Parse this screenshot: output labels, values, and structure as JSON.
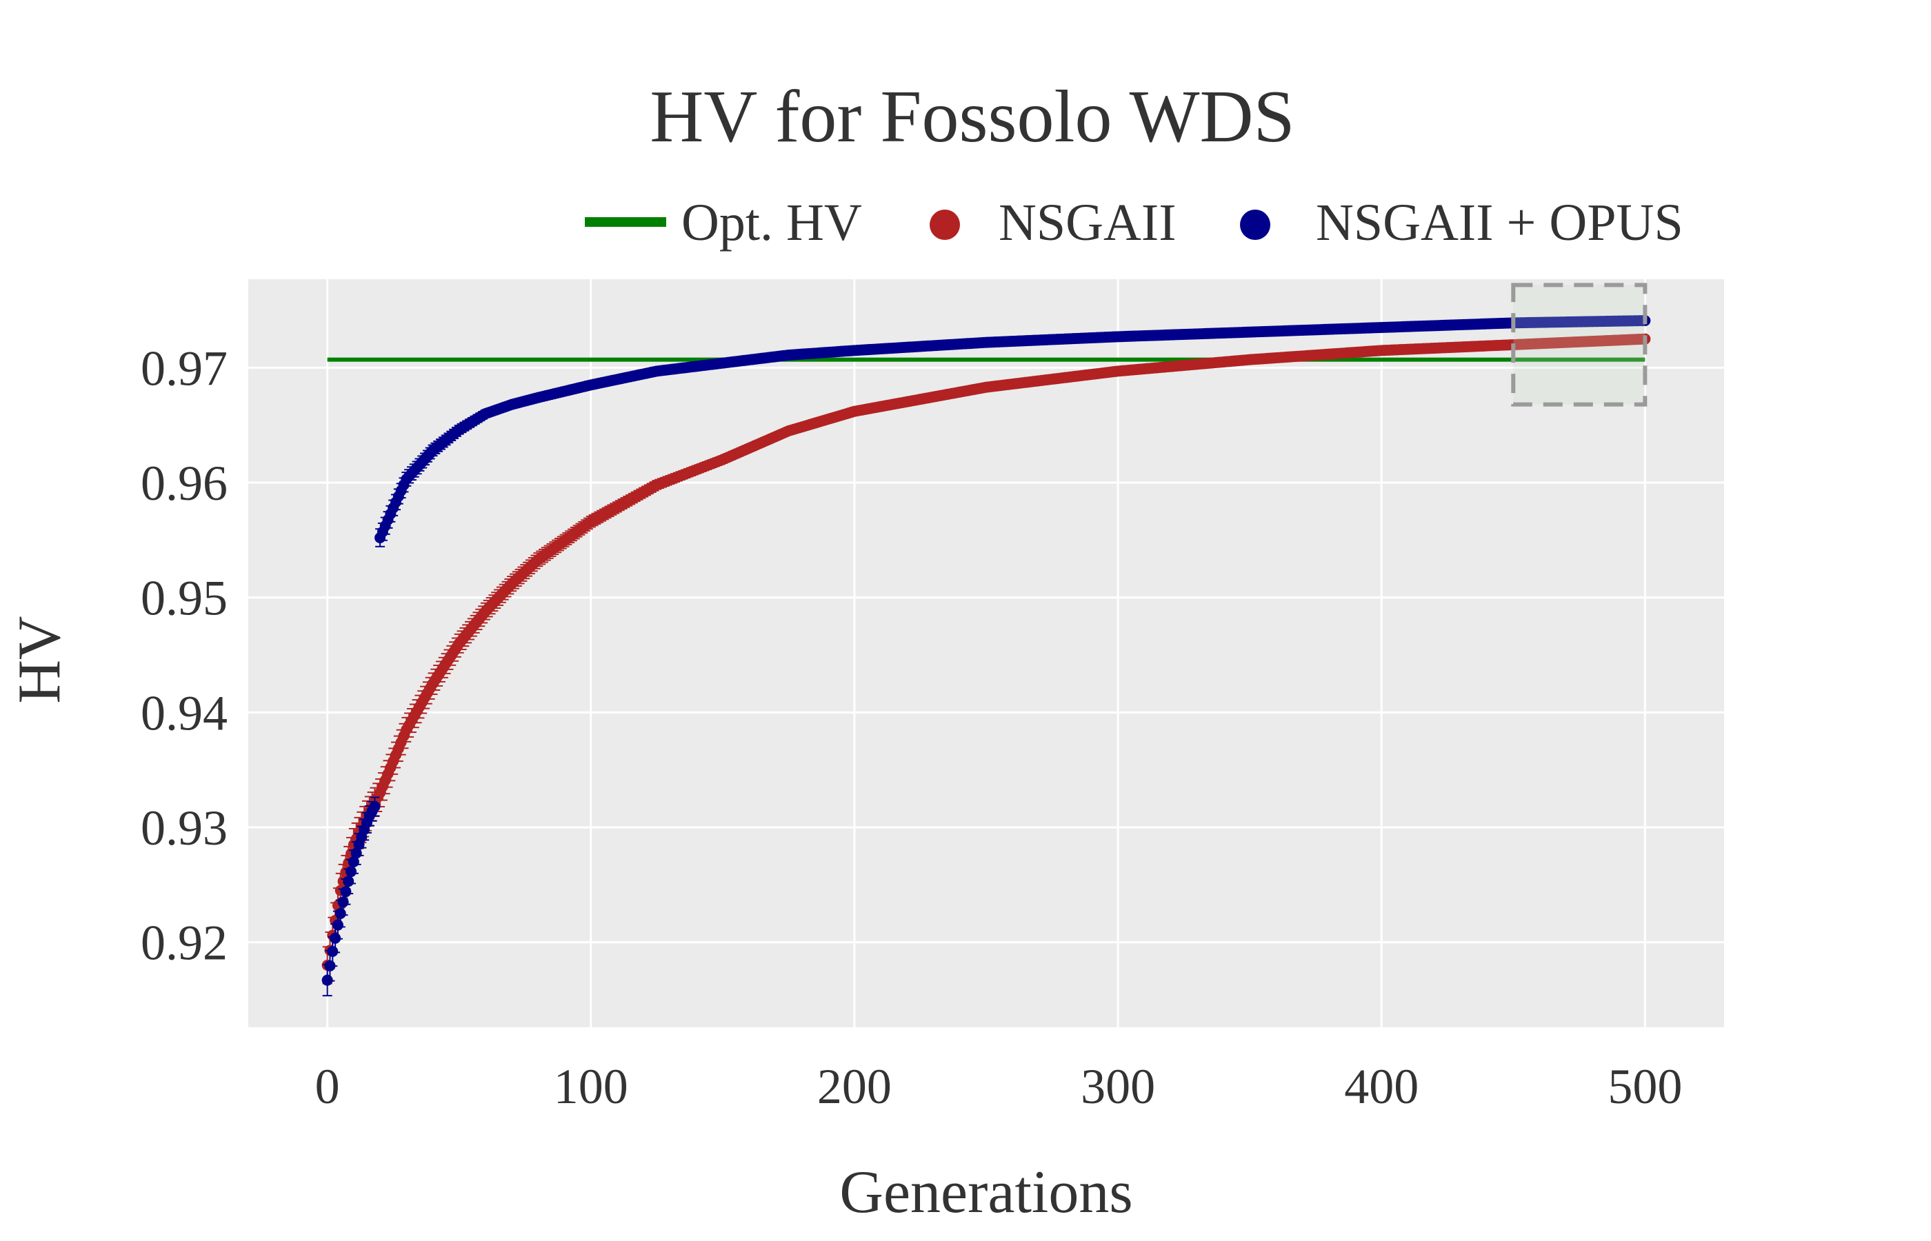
{
  "chart_data": {
    "type": "line",
    "title": "HV for Fossolo WDS",
    "xlabel": "Generations",
    "ylabel": "HV",
    "xlim": [
      -30,
      530
    ],
    "ylim": [
      0.9126,
      0.9777
    ],
    "xticks": [
      0,
      100,
      200,
      300,
      400,
      500
    ],
    "xtick_labels": [
      "0",
      "100",
      "200",
      "300",
      "400",
      "500"
    ],
    "yticks": [
      0.92,
      0.93,
      0.94,
      0.95,
      0.96,
      0.97
    ],
    "ytick_labels": [
      "0.92",
      "0.93",
      "0.94",
      "0.95",
      "0.96",
      "0.97"
    ],
    "grid": true,
    "legend_position": "top-right",
    "background_color": "#ebebeb",
    "series": [
      {
        "name": "Opt. HV",
        "kind": "line",
        "color": "#008000",
        "x": [
          0,
          500
        ],
        "y": [
          0.9707,
          0.9707
        ]
      },
      {
        "name": "NSGAII",
        "kind": "scatter-errorbar",
        "color": "#b22222",
        "x": [
          0,
          5,
          10,
          15,
          20,
          30,
          40,
          50,
          60,
          70,
          80,
          100,
          125,
          150,
          175,
          200,
          250,
          300,
          350,
          400,
          450,
          500
        ],
        "y": [
          0.918,
          0.9245,
          0.9285,
          0.931,
          0.933,
          0.9385,
          0.9425,
          0.946,
          0.9488,
          0.9512,
          0.9533,
          0.9566,
          0.9598,
          0.962,
          0.9645,
          0.9662,
          0.9683,
          0.9697,
          0.9707,
          0.9715,
          0.972,
          0.9725
        ]
      },
      {
        "name": "NSGAII + OPUS",
        "kind": "scatter-errorbar",
        "color": "#00008b",
        "x": [
          0,
          2,
          4,
          6,
          8,
          10,
          12,
          14,
          16,
          18,
          20,
          25,
          30,
          40,
          50,
          60,
          70,
          80,
          100,
          125,
          150,
          175,
          200,
          250,
          300,
          350,
          400,
          450,
          500
        ],
        "y": [
          0.9167,
          0.9192,
          0.9215,
          0.9235,
          0.9253,
          0.927,
          0.9285,
          0.9298,
          0.931,
          0.9318,
          0.9552,
          0.9578,
          0.9603,
          0.9628,
          0.9646,
          0.966,
          0.9668,
          0.9674,
          0.9685,
          0.9697,
          0.9704,
          0.9711,
          0.9715,
          0.9722,
          0.9727,
          0.9731,
          0.9735,
          0.9739,
          0.9741
        ]
      }
    ],
    "inset_marker": {
      "style": "dashed-rectangle",
      "x_range": [
        450,
        500
      ],
      "y_range": [
        0.9668,
        0.9772
      ]
    }
  }
}
